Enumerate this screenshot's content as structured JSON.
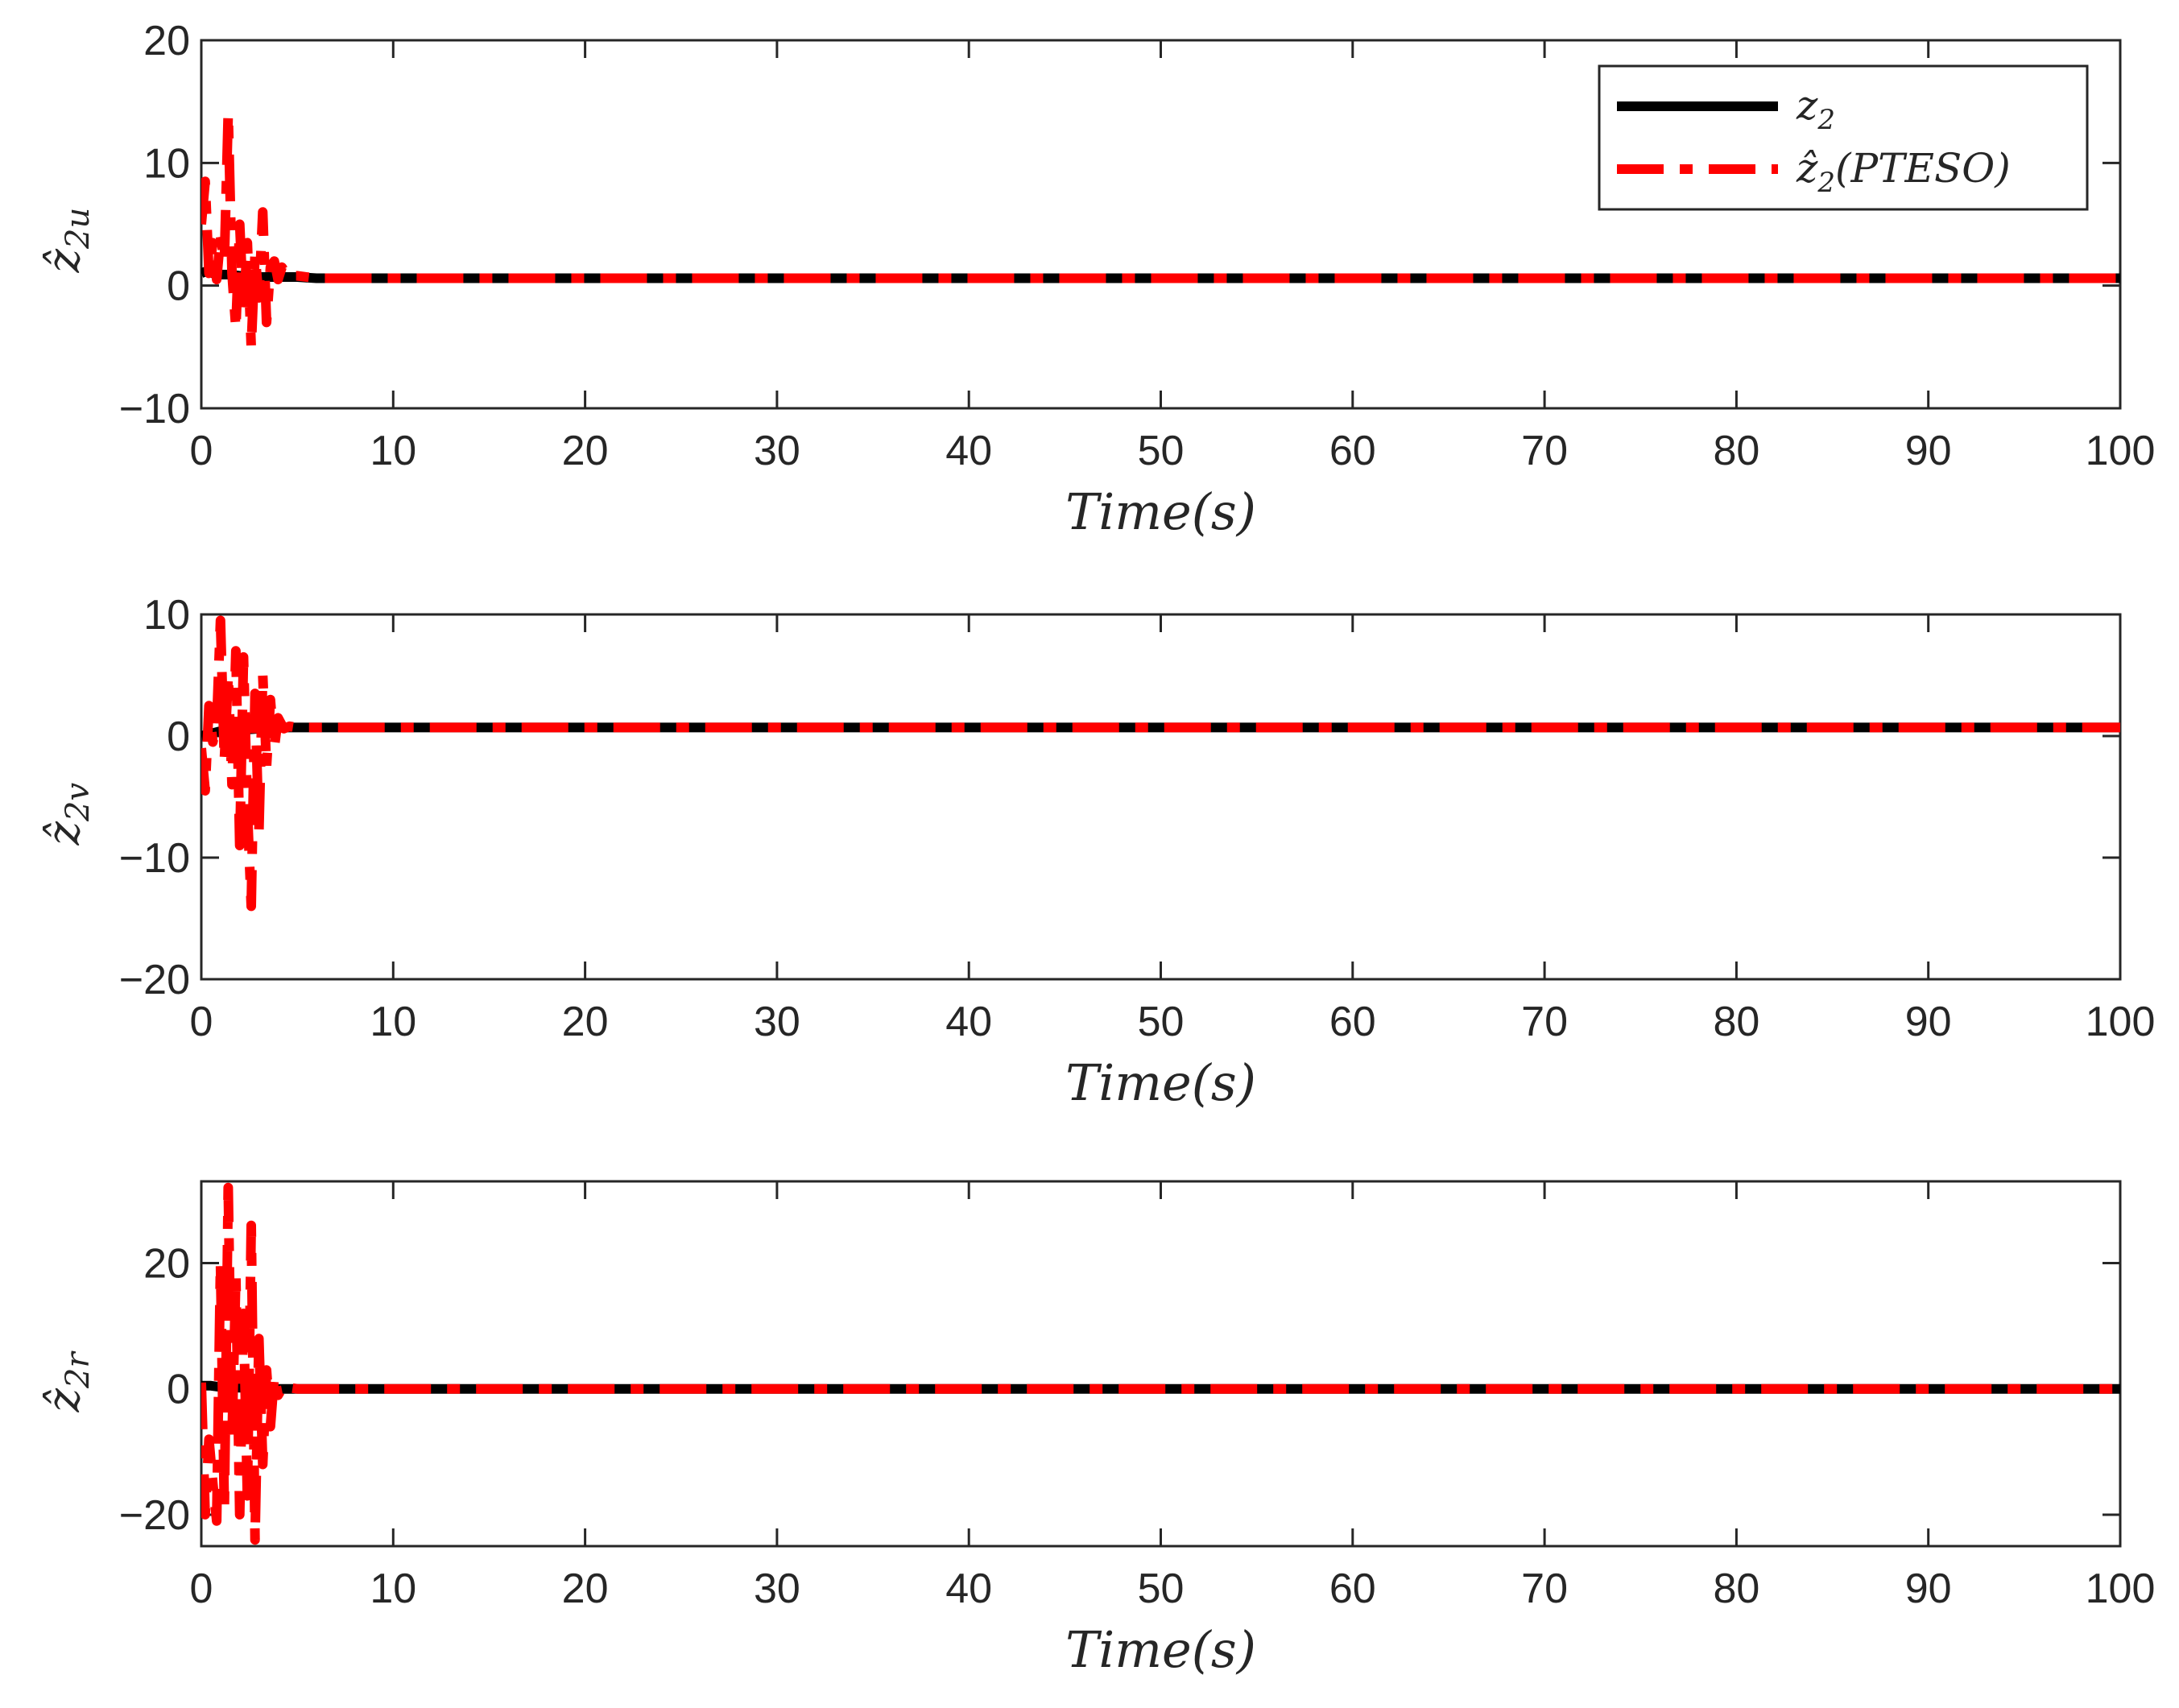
{
  "chart_data": [
    {
      "type": "line",
      "ylabel": "ẑ2u",
      "ylabel_main": "ẑ",
      "ylabel_sub": "2u",
      "xlabel": "Time(s)",
      "xlim": [
        0,
        100
      ],
      "ylim": [
        -10,
        20
      ],
      "xticks": [
        0,
        10,
        20,
        30,
        40,
        50,
        60,
        70,
        80,
        90,
        100
      ],
      "yticks": [
        -10,
        0,
        10,
        20
      ],
      "legend_position": "top-right",
      "legend": [
        {
          "label_main": "z",
          "label_sub": "2",
          "label_rest": "",
          "hat": false
        },
        {
          "label_main": "ẑ",
          "label_sub": "2",
          "label_rest": "(PTESO)",
          "hat": true
        }
      ],
      "series": [
        {
          "name": "z2",
          "color": "#000000",
          "style": "solid",
          "x": [
            0,
            0.3,
            0.6,
            1.0,
            1.5,
            2.0,
            2.5,
            3.0,
            3.5,
            4.0,
            5.0,
            6.0,
            8.0,
            10.0,
            100.0
          ],
          "y": [
            1.0,
            1.2,
            1.0,
            0.9,
            0.9,
            0.8,
            0.8,
            0.7,
            0.7,
            0.7,
            0.7,
            0.6,
            0.6,
            0.6,
            0.6
          ]
        },
        {
          "name": "ẑ2(PTESO)",
          "color": "#ff0000",
          "style": "dashdot",
          "x": [
            0,
            0.2,
            0.4,
            0.6,
            0.8,
            1.0,
            1.2,
            1.4,
            1.6,
            1.8,
            2.0,
            2.2,
            2.4,
            2.6,
            2.8,
            3.0,
            3.2,
            3.4,
            3.6,
            3.8,
            4.0,
            4.2,
            4.5,
            5.0,
            6.0,
            8.0,
            10.0,
            100.0
          ],
          "y": [
            5.0,
            8.5,
            1.0,
            3.5,
            0.5,
            4.0,
            2.0,
            14.0,
            1.0,
            -3.5,
            5.0,
            -2.0,
            3.5,
            -5.0,
            2.5,
            -1.0,
            6.0,
            -3.0,
            1.5,
            2.0,
            0.5,
            1.5,
            0.8,
            0.8,
            0.6,
            0.6,
            0.6,
            0.6
          ]
        }
      ]
    },
    {
      "type": "line",
      "ylabel": "ẑ2v",
      "ylabel_main": "ẑ",
      "ylabel_sub": "2v",
      "xlabel": "Time(s)",
      "xlim": [
        0,
        100
      ],
      "ylim": [
        -20,
        10
      ],
      "xticks": [
        0,
        10,
        20,
        30,
        40,
        50,
        60,
        70,
        80,
        90,
        100
      ],
      "yticks": [
        -20,
        -10,
        0,
        10
      ],
      "series": [
        {
          "name": "z2",
          "color": "#000000",
          "style": "solid",
          "x": [
            0,
            0.5,
            1.0,
            2.0,
            3.0,
            4.0,
            5.0,
            100.0
          ],
          "y": [
            0.0,
            0.2,
            0.4,
            0.5,
            0.6,
            0.7,
            0.7,
            0.7
          ]
        },
        {
          "name": "ẑ2(PTESO)",
          "color": "#ff0000",
          "style": "dashdot",
          "x": [
            0,
            0.2,
            0.4,
            0.6,
            0.8,
            1.0,
            1.2,
            1.4,
            1.6,
            1.8,
            2.0,
            2.2,
            2.4,
            2.6,
            2.8,
            3.0,
            3.2,
            3.4,
            3.6,
            3.8,
            4.0,
            4.3,
            4.6,
            5.0,
            100.0
          ],
          "y": [
            -1.0,
            -4.5,
            2.5,
            -0.5,
            1.0,
            9.5,
            -2.0,
            5.0,
            -4.0,
            7.0,
            -9.0,
            6.5,
            -6.0,
            -14.0,
            3.5,
            -8.0,
            5.0,
            -2.5,
            3.0,
            -1.0,
            1.5,
            0.6,
            0.8,
            0.7,
            0.7
          ]
        }
      ]
    },
    {
      "type": "line",
      "ylabel": "ẑ2r",
      "ylabel_main": "ẑ",
      "ylabel_sub": "2r",
      "xlabel": "Time(s)",
      "xlim": [
        0,
        100
      ],
      "ylim": [
        -25,
        33
      ],
      "xticks": [
        0,
        10,
        20,
        30,
        40,
        50,
        60,
        70,
        80,
        90,
        100
      ],
      "yticks": [
        -20,
        0,
        20
      ],
      "series": [
        {
          "name": "z2",
          "color": "#000000",
          "style": "solid",
          "x": [
            0,
            0.5,
            1.0,
            2.0,
            3.0,
            4.0,
            5.0,
            100.0
          ],
          "y": [
            0.5,
            0.5,
            0.3,
            0.2,
            0.1,
            0.0,
            0.0,
            0.0
          ]
        },
        {
          "name": "ẑ2(PTESO)",
          "color": "#ff0000",
          "style": "dashdot",
          "x": [
            0,
            0.2,
            0.4,
            0.6,
            0.8,
            1.0,
            1.2,
            1.4,
            1.6,
            1.8,
            2.0,
            2.2,
            2.4,
            2.6,
            2.8,
            3.0,
            3.2,
            3.4,
            3.6,
            3.8,
            4.0,
            4.3,
            4.6,
            5.0,
            100.0
          ],
          "y": [
            1.0,
            -20.0,
            -8.0,
            -15.0,
            -21.0,
            20.0,
            -19.0,
            32.0,
            -8.0,
            18.0,
            -20.0,
            12.0,
            -17.0,
            26.0,
            -24.0,
            8.0,
            -12.0,
            3.0,
            -6.0,
            2.0,
            -1.0,
            0.5,
            0.2,
            0.0,
            0.0
          ]
        }
      ]
    }
  ]
}
